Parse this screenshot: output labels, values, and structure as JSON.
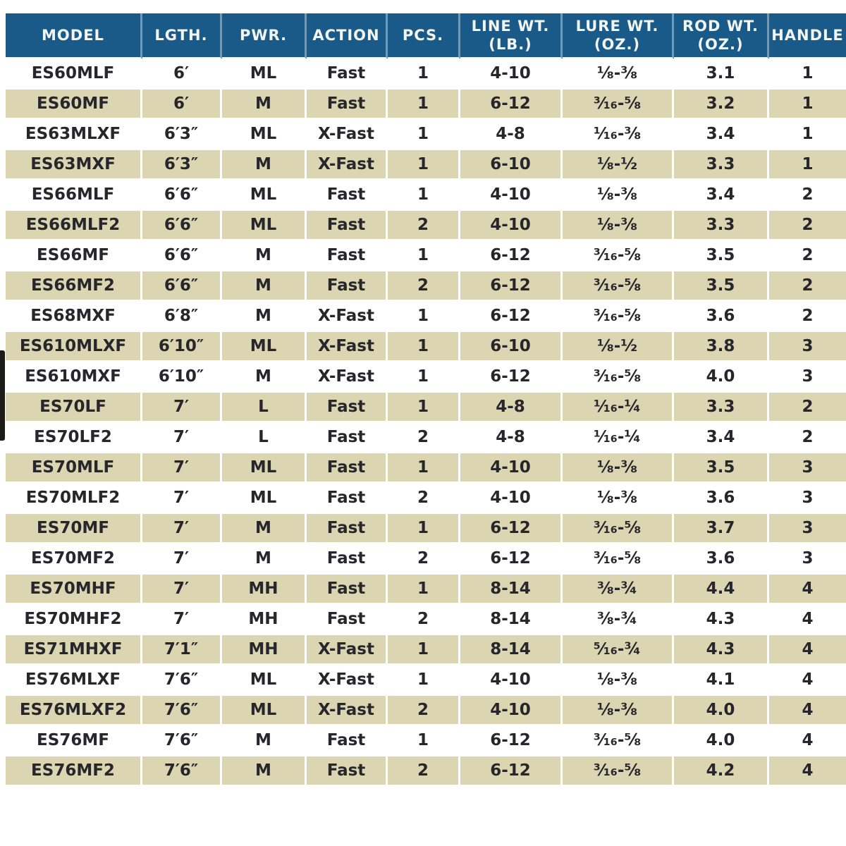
{
  "table": {
    "colors": {
      "header_bg": "#1a5a89",
      "header_text": "#f2f5f2",
      "row_bg": "#ffffff",
      "row_alt_bg": "#dbd5b1",
      "body_text": "#26262c",
      "separator": "#ffffff"
    },
    "columns": [
      {
        "key": "model",
        "label": "MODEL",
        "label2": ""
      },
      {
        "key": "length",
        "label": "LGTH.",
        "label2": ""
      },
      {
        "key": "power",
        "label": "PWR.",
        "label2": ""
      },
      {
        "key": "action",
        "label": "ACTION",
        "label2": ""
      },
      {
        "key": "pieces",
        "label": "PCS.",
        "label2": ""
      },
      {
        "key": "line_wt",
        "label": "LINE WT.",
        "label2": "(LB.)"
      },
      {
        "key": "lure_wt",
        "label": "LURE WT.",
        "label2": "(OZ.)"
      },
      {
        "key": "rod_wt",
        "label": "ROD WT.",
        "label2": "(OZ.)"
      },
      {
        "key": "handle",
        "label": "HANDLE",
        "label2": ""
      }
    ],
    "rows": [
      {
        "model": "ES60MLF",
        "length": "6′",
        "power": "ML",
        "action": "Fast",
        "pieces": "1",
        "line_wt": "4-10",
        "lure_wt": "⅛-⅜",
        "rod_wt": "3.1",
        "handle": "1"
      },
      {
        "model": "ES60MF",
        "length": "6′",
        "power": "M",
        "action": "Fast",
        "pieces": "1",
        "line_wt": "6-12",
        "lure_wt": "³⁄₁₆-⅝",
        "rod_wt": "3.2",
        "handle": "1"
      },
      {
        "model": "ES63MLXF",
        "length": "6′3″",
        "power": "ML",
        "action": "X-Fast",
        "pieces": "1",
        "line_wt": "4-8",
        "lure_wt": "¹⁄₁₆-⅜",
        "rod_wt": "3.4",
        "handle": "1"
      },
      {
        "model": "ES63MXF",
        "length": "6′3″",
        "power": "M",
        "action": "X-Fast",
        "pieces": "1",
        "line_wt": "6-10",
        "lure_wt": "⅛-½",
        "rod_wt": "3.3",
        "handle": "1"
      },
      {
        "model": "ES66MLF",
        "length": "6′6″",
        "power": "ML",
        "action": "Fast",
        "pieces": "1",
        "line_wt": "4-10",
        "lure_wt": "⅛-⅜",
        "rod_wt": "3.4",
        "handle": "2"
      },
      {
        "model": "ES66MLF2",
        "length": "6′6″",
        "power": "ML",
        "action": "Fast",
        "pieces": "2",
        "line_wt": "4-10",
        "lure_wt": "⅛-⅜",
        "rod_wt": "3.3",
        "handle": "2"
      },
      {
        "model": "ES66MF",
        "length": "6′6″",
        "power": "M",
        "action": "Fast",
        "pieces": "1",
        "line_wt": "6-12",
        "lure_wt": "³⁄₁₆-⅝",
        "rod_wt": "3.5",
        "handle": "2"
      },
      {
        "model": "ES66MF2",
        "length": "6′6″",
        "power": "M",
        "action": "Fast",
        "pieces": "2",
        "line_wt": "6-12",
        "lure_wt": "³⁄₁₆-⅝",
        "rod_wt": "3.5",
        "handle": "2"
      },
      {
        "model": "ES68MXF",
        "length": "6′8″",
        "power": "M",
        "action": "X-Fast",
        "pieces": "1",
        "line_wt": "6-12",
        "lure_wt": "³⁄₁₆-⅝",
        "rod_wt": "3.6",
        "handle": "2"
      },
      {
        "model": "ES610MLXF",
        "length": "6′10″",
        "power": "ML",
        "action": "X-Fast",
        "pieces": "1",
        "line_wt": "6-10",
        "lure_wt": "⅛-½",
        "rod_wt": "3.8",
        "handle": "3"
      },
      {
        "model": "ES610MXF",
        "length": "6′10″",
        "power": "M",
        "action": "X-Fast",
        "pieces": "1",
        "line_wt": "6-12",
        "lure_wt": "³⁄₁₆-⅝",
        "rod_wt": "4.0",
        "handle": "3"
      },
      {
        "model": "ES70LF",
        "length": "7′",
        "power": "L",
        "action": "Fast",
        "pieces": "1",
        "line_wt": "4-8",
        "lure_wt": "¹⁄₁₆-¼",
        "rod_wt": "3.3",
        "handle": "2"
      },
      {
        "model": "ES70LF2",
        "length": "7′",
        "power": "L",
        "action": "Fast",
        "pieces": "2",
        "line_wt": "4-8",
        "lure_wt": "¹⁄₁₆-¼",
        "rod_wt": "3.4",
        "handle": "2"
      },
      {
        "model": "ES70MLF",
        "length": "7′",
        "power": "ML",
        "action": "Fast",
        "pieces": "1",
        "line_wt": "4-10",
        "lure_wt": "⅛-⅜",
        "rod_wt": "3.5",
        "handle": "3"
      },
      {
        "model": "ES70MLF2",
        "length": "7′",
        "power": "ML",
        "action": "Fast",
        "pieces": "2",
        "line_wt": "4-10",
        "lure_wt": "⅛-⅜",
        "rod_wt": "3.6",
        "handle": "3"
      },
      {
        "model": "ES70MF",
        "length": "7′",
        "power": "M",
        "action": "Fast",
        "pieces": "1",
        "line_wt": "6-12",
        "lure_wt": "³⁄₁₆-⅝",
        "rod_wt": "3.7",
        "handle": "3"
      },
      {
        "model": "ES70MF2",
        "length": "7′",
        "power": "M",
        "action": "Fast",
        "pieces": "2",
        "line_wt": "6-12",
        "lure_wt": "³⁄₁₆-⅝",
        "rod_wt": "3.6",
        "handle": "3"
      },
      {
        "model": "ES70MHF",
        "length": "7′",
        "power": "MH",
        "action": "Fast",
        "pieces": "1",
        "line_wt": "8-14",
        "lure_wt": "⅜-¾",
        "rod_wt": "4.4",
        "handle": "4"
      },
      {
        "model": "ES70MHF2",
        "length": "7′",
        "power": "MH",
        "action": "Fast",
        "pieces": "2",
        "line_wt": "8-14",
        "lure_wt": "⅜-¾",
        "rod_wt": "4.3",
        "handle": "4"
      },
      {
        "model": "ES71MHXF",
        "length": "7′1″",
        "power": "MH",
        "action": "X-Fast",
        "pieces": "1",
        "line_wt": "8-14",
        "lure_wt": "⁵⁄₁₆-¾",
        "rod_wt": "4.3",
        "handle": "4"
      },
      {
        "model": "ES76MLXF",
        "length": "7′6″",
        "power": "ML",
        "action": "X-Fast",
        "pieces": "1",
        "line_wt": "4-10",
        "lure_wt": "⅛-⅜",
        "rod_wt": "4.1",
        "handle": "4"
      },
      {
        "model": "ES76MLXF2",
        "length": "7′6″",
        "power": "ML",
        "action": "X-Fast",
        "pieces": "2",
        "line_wt": "4-10",
        "lure_wt": "⅛-⅜",
        "rod_wt": "4.0",
        "handle": "4"
      },
      {
        "model": "ES76MF",
        "length": "7′6″",
        "power": "M",
        "action": "Fast",
        "pieces": "1",
        "line_wt": "6-12",
        "lure_wt": "³⁄₁₆-⅝",
        "rod_wt": "4.0",
        "handle": "4"
      },
      {
        "model": "ES76MF2",
        "length": "7′6″",
        "power": "M",
        "action": "Fast",
        "pieces": "2",
        "line_wt": "6-12",
        "lure_wt": "³⁄₁₆-⅝",
        "rod_wt": "4.2",
        "handle": "4"
      }
    ]
  }
}
